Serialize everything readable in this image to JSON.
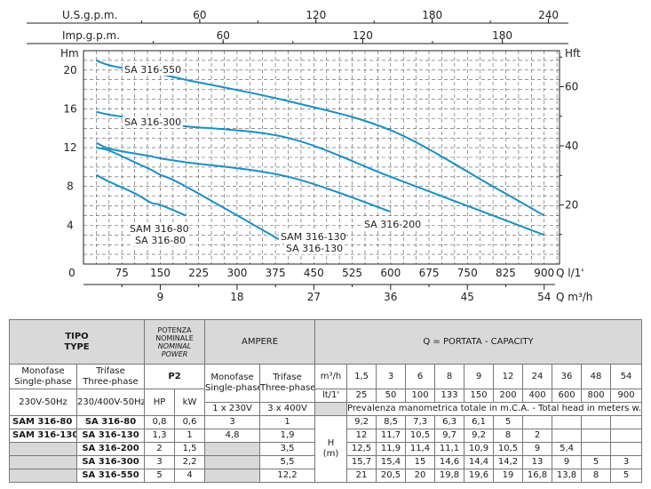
{
  "chart_data": {
    "type": "line",
    "axes": {
      "top_us": {
        "label": "U.S.g.p.m.",
        "ticks": [
          "60",
          "120",
          "180",
          "240"
        ],
        "values": [
          60,
          120,
          180,
          240
        ]
      },
      "top_imp": {
        "label": "Imp.g.p.m.",
        "ticks": [
          "60",
          "120",
          "180"
        ],
        "values": [
          60,
          120,
          180
        ]
      },
      "left": {
        "label": "Hm",
        "ticks": [
          "0",
          "4",
          "8",
          "12",
          "16",
          "20"
        ],
        "values": [
          0,
          4,
          8,
          12,
          16,
          20
        ]
      },
      "right": {
        "label": "Hft",
        "ticks": [
          "20",
          "40",
          "60"
        ],
        "values": [
          20,
          40,
          60
        ]
      },
      "bottom_lmin": {
        "label": "Q l/1'",
        "ticks": [
          "75",
          "150",
          "225",
          "300",
          "375",
          "450",
          "525",
          "600",
          "675",
          "750",
          "825",
          "900"
        ],
        "values": [
          75,
          150,
          225,
          300,
          375,
          450,
          525,
          600,
          675,
          750,
          825,
          900
        ]
      },
      "bottom_m3h": {
        "label": "Q m³/h",
        "ticks": [
          "9",
          "18",
          "27",
          "36",
          "45",
          "54"
        ],
        "values": [
          9,
          18,
          27,
          36,
          45,
          54
        ]
      }
    },
    "xlim": [
      0,
      930
    ],
    "ylim": [
      0,
      22
    ],
    "series": [
      {
        "name": "SA 316-550",
        "x": [
          25,
          50,
          100,
          133,
          150,
          200,
          400,
          600,
          800,
          900
        ],
        "y": [
          21,
          20.5,
          20,
          19.8,
          19.6,
          19,
          16.8,
          13.8,
          8,
          5
        ]
      },
      {
        "name": "SA 316-300",
        "x": [
          25,
          50,
          100,
          133,
          150,
          200,
          400,
          600,
          800,
          900
        ],
        "y": [
          15.7,
          15.4,
          15,
          14.6,
          14.4,
          14.2,
          13,
          9,
          5,
          3
        ]
      },
      {
        "name": "SA 316-200",
        "x": [
          25,
          50,
          100,
          133,
          150,
          200,
          400,
          600
        ],
        "y": [
          12.5,
          11.9,
          11.4,
          11.1,
          10.9,
          10.5,
          9,
          5.4
        ]
      },
      {
        "name": "SA 316-130",
        "x": [
          25,
          50,
          100,
          133,
          150,
          200,
          400
        ],
        "y": [
          12,
          11.7,
          10.5,
          9.7,
          9.2,
          8,
          2
        ]
      },
      {
        "name": "SA 316-80",
        "x": [
          25,
          50,
          100,
          133,
          150,
          200
        ],
        "y": [
          9.2,
          8.5,
          7.3,
          6.3,
          6.1,
          5
        ]
      }
    ],
    "curve_labels": [
      {
        "text": "SA 316-550",
        "series": "SA 316-550"
      },
      {
        "text": "SA 316-300",
        "series": "SA 316-300"
      },
      {
        "text": "SA 316-200",
        "series": "SA 316-200"
      },
      {
        "text": "SAM 316-130",
        "series": "SA 316-130"
      },
      {
        "text": "SA 316-130",
        "series": "SA 316-130"
      },
      {
        "text": "SAM 316-80",
        "series": "SA 316-80"
      },
      {
        "text": "SA 316-80",
        "series": "SA 316-80"
      }
    ],
    "colors": {
      "curve": "#1a8fc4",
      "grid": "#555555"
    }
  },
  "table": {
    "tipo": "TIPO",
    "type": "TYPE",
    "potenza": [
      "POTENZA",
      "NOMINALE",
      "NOMINAL",
      "POWER"
    ],
    "ampere": "AMPERE",
    "portata_prefix": "Q = PORTATA - ",
    "portata_italic": "CAPACITY",
    "monofase": "Monofase",
    "single_phase": "Single-phase",
    "trifase": "Trifase",
    "three_phase": "Three-phase",
    "p2": "P2",
    "hp": "HP",
    "kw": "kW",
    "m3h_label": "m³/h",
    "lmin_label": "lt/1'",
    "m3h": [
      "1,5",
      "3",
      "6",
      "8",
      "9",
      "12",
      "24",
      "36",
      "48",
      "54"
    ],
    "lmin": [
      "25",
      "50",
      "100",
      "133",
      "150",
      "200",
      "400",
      "600",
      "800",
      "900"
    ],
    "v_mono": "230V-50Hz",
    "v_tri": "230/400V-50Hz",
    "a_mono": "1 x 230V",
    "a_tri": "3 x 400V",
    "prevalenza": "Prevalenza manometrica totale in m.C.A. - ",
    "prevalenza_italic": "Total head in meters w.c.",
    "h_label": "H",
    "h_unit": "(m)",
    "rows": [
      {
        "mono": "SAM 316-80",
        "tri": "SA 316-80",
        "hp": "0,8",
        "kw": "0,6",
        "a1": "3",
        "a3": "1",
        "h": [
          "9,2",
          "8,5",
          "7,3",
          "6,3",
          "6,1",
          "5",
          "",
          "",
          "",
          ""
        ]
      },
      {
        "mono": "SAM 316-130",
        "tri": "SA 316-130",
        "hp": "1,3",
        "kw": "1",
        "a1": "4,8",
        "a3": "1,9",
        "h": [
          "12",
          "11,7",
          "10,5",
          "9,7",
          "9,2",
          "8",
          "2",
          "",
          "",
          ""
        ]
      },
      {
        "mono": "",
        "tri": "SA 316-200",
        "hp": "2",
        "kw": "1,5",
        "a1": "",
        "a3": "3,5",
        "h": [
          "12,5",
          "11,9",
          "11,4",
          "11,1",
          "10,9",
          "10,5",
          "9",
          "5,4",
          "",
          ""
        ]
      },
      {
        "mono": "",
        "tri": "SA 316-300",
        "hp": "3",
        "kw": "2,2",
        "a1": "",
        "a3": "5,5",
        "h": [
          "15,7",
          "15,4",
          "15",
          "14,6",
          "14,4",
          "14,2",
          "13",
          "9",
          "5",
          "3"
        ]
      },
      {
        "mono": "",
        "tri": "SA 316-550",
        "hp": "5",
        "kw": "4",
        "a1": "",
        "a3": "12,2",
        "h": [
          "21",
          "20,5",
          "20",
          "19,8",
          "19,6",
          "19",
          "16,8",
          "13,8",
          "8",
          "5"
        ]
      }
    ]
  }
}
